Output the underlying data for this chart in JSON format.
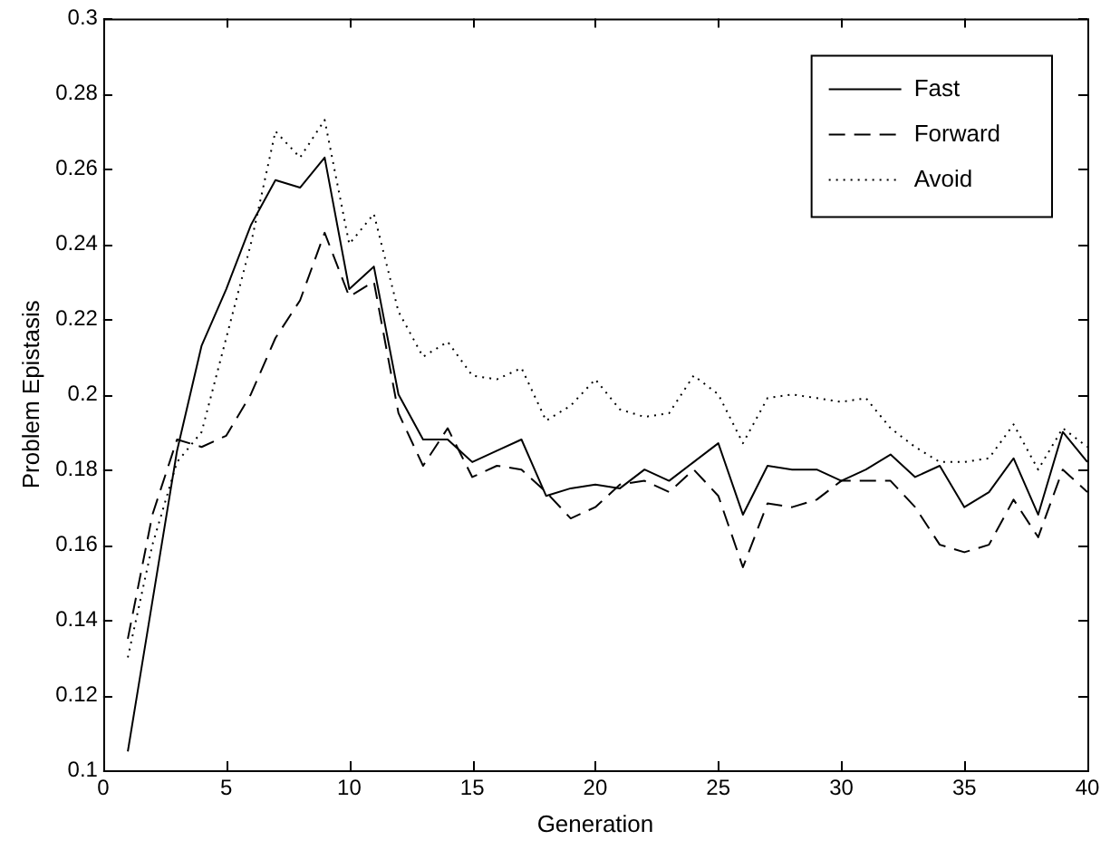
{
  "chart_data": {
    "type": "line",
    "xlabel": "Generation",
    "ylabel": "Problem Epistasis",
    "x": [
      1,
      2,
      3,
      4,
      5,
      6,
      7,
      8,
      9,
      10,
      11,
      12,
      13,
      14,
      15,
      16,
      17,
      18,
      19,
      20,
      21,
      22,
      23,
      24,
      25,
      26,
      27,
      28,
      29,
      30,
      31,
      32,
      33,
      34,
      35,
      36,
      37,
      38,
      39,
      40
    ],
    "series": [
      {
        "name": "Fast",
        "color": "#000000",
        "line_style": "solid",
        "values": [
          0.105,
          0.145,
          0.185,
          0.213,
          0.228,
          0.245,
          0.257,
          0.255,
          0.263,
          0.228,
          0.234,
          0.2,
          0.188,
          0.188,
          0.182,
          0.185,
          0.188,
          0.173,
          0.175,
          0.176,
          0.175,
          0.18,
          0.177,
          0.182,
          0.187,
          0.168,
          0.181,
          0.18,
          0.18,
          0.177,
          0.18,
          0.184,
          0.178,
          0.181,
          0.17,
          0.174,
          0.183,
          0.168,
          0.19,
          0.182
        ]
      },
      {
        "name": "Forward",
        "color": "#000000",
        "line_style": "dashed",
        "values": [
          0.135,
          0.168,
          0.188,
          0.186,
          0.189,
          0.2,
          0.215,
          0.225,
          0.243,
          0.226,
          0.23,
          0.195,
          0.181,
          0.191,
          0.178,
          0.181,
          0.18,
          0.174,
          0.167,
          0.17,
          0.176,
          0.177,
          0.174,
          0.18,
          0.173,
          0.154,
          0.171,
          0.17,
          0.172,
          0.177,
          0.177,
          0.177,
          0.17,
          0.16,
          0.158,
          0.16,
          0.172,
          0.162,
          0.18,
          0.174
        ]
      },
      {
        "name": "Avoid",
        "color": "#000000",
        "line_style": "dotted",
        "values": [
          0.13,
          0.16,
          0.182,
          0.19,
          0.215,
          0.24,
          0.27,
          0.263,
          0.273,
          0.24,
          0.248,
          0.222,
          0.21,
          0.214,
          0.205,
          0.204,
          0.207,
          0.193,
          0.197,
          0.204,
          0.196,
          0.194,
          0.195,
          0.205,
          0.2,
          0.187,
          0.199,
          0.2,
          0.199,
          0.198,
          0.199,
          0.191,
          0.186,
          0.182,
          0.182,
          0.183,
          0.192,
          0.18,
          0.191,
          0.186
        ]
      }
    ],
    "xlim": [
      0,
      40
    ],
    "xticks": [
      0,
      5,
      10,
      15,
      20,
      25,
      30,
      35,
      40
    ],
    "ylim": [
      0.1,
      0.3
    ],
    "yticks": [
      0.1,
      0.12,
      0.14,
      0.16,
      0.18,
      0.2,
      0.22,
      0.24,
      0.26,
      0.28,
      0.3
    ],
    "grid": false,
    "legend": "top right",
    "marker": "none"
  }
}
